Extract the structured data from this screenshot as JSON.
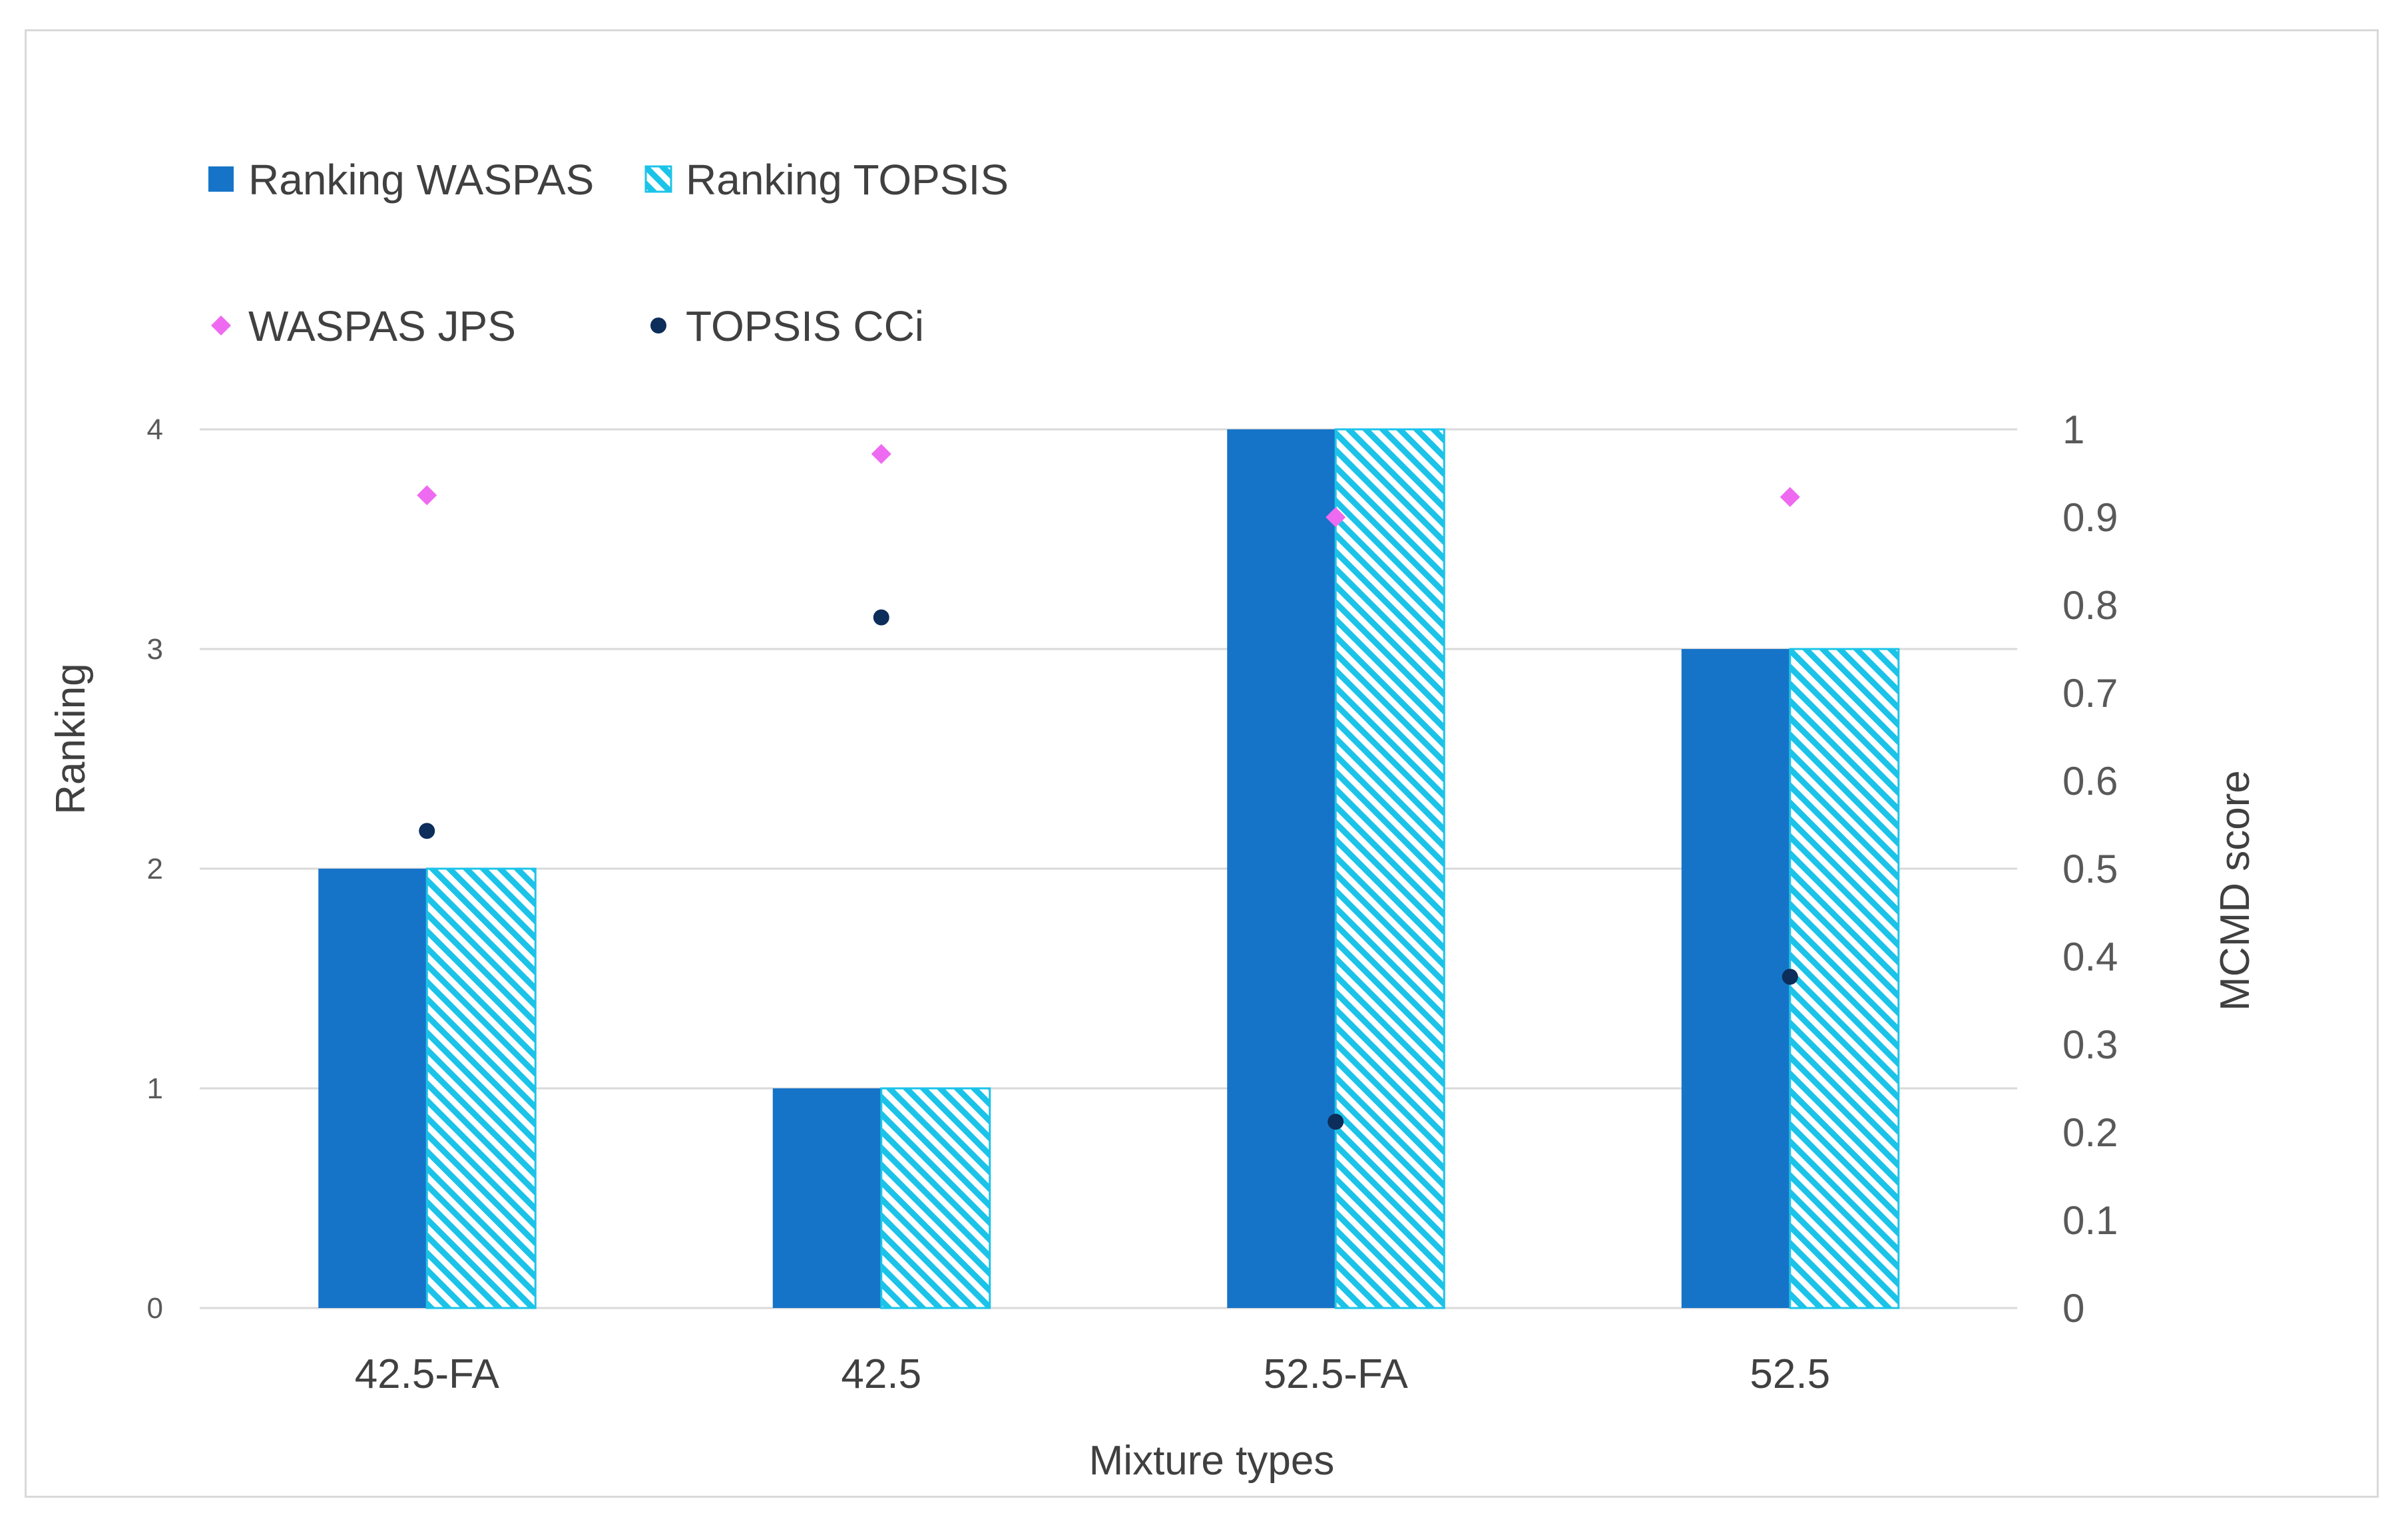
{
  "chart_data": {
    "type": "bar",
    "categories": [
      "42.5-FA",
      "42.5",
      "52.5-FA",
      "52.5"
    ],
    "series": [
      {
        "name": "Ranking WASPAS",
        "kind": "bar",
        "axis": "left",
        "values": [
          2,
          1,
          4,
          3
        ],
        "color": "#1674c8"
      },
      {
        "name": "Ranking TOPSIS",
        "kind": "bar-hatched",
        "axis": "left",
        "values": [
          2,
          1,
          4,
          3
        ],
        "color": "#1cc3e8"
      },
      {
        "name": "WASPAS JPS",
        "kind": "scatter-diamond",
        "axis": "right",
        "values": [
          0.925,
          0.972,
          0.9,
          0.923
        ],
        "color": "#ee6af0"
      },
      {
        "name": "TOPSIS CCi",
        "kind": "scatter-circle",
        "axis": "right",
        "values": [
          0.543,
          0.786,
          0.212,
          0.377
        ],
        "color": "#0d2d5a"
      }
    ],
    "xlabel": "Mixture types",
    "ylabel": "Ranking",
    "y2label": "MCMD score",
    "ylim": [
      0,
      4
    ],
    "y2lim": [
      0,
      1
    ],
    "yticks": [
      "0",
      "1",
      "2",
      "3",
      "4"
    ],
    "y2ticks": [
      "0",
      "0.1",
      "0.2",
      "0.3",
      "0.4",
      "0.5",
      "0.6",
      "0.7",
      "0.8",
      "0.9",
      "1"
    ],
    "grid": true,
    "legend_position": "top-left"
  }
}
